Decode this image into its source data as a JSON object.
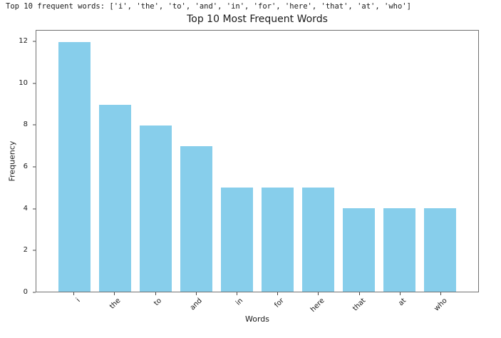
{
  "console": {
    "text": "Top 10 frequent words: ['i', 'the', 'to', 'and', 'in', 'for', 'here', 'that', 'at', 'who']"
  },
  "chart_data": {
    "type": "bar",
    "title": "Top 10 Most Frequent Words",
    "xlabel": "Words",
    "ylabel": "Frequency",
    "categories": [
      "i",
      "the",
      "to",
      "and",
      "in",
      "for",
      "here",
      "that",
      "at",
      "who"
    ],
    "values": [
      12,
      9,
      8,
      7,
      5,
      5,
      5,
      4,
      4,
      4
    ],
    "yticks": [
      0,
      2,
      4,
      6,
      8,
      10,
      12
    ],
    "ylim": [
      0,
      12.55
    ],
    "bar_color": "#87CEEB",
    "grid": false,
    "legend_position": "none"
  }
}
